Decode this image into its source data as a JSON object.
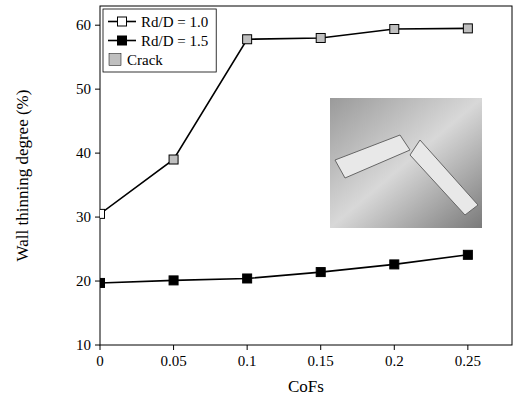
{
  "chart_data": {
    "type": "line",
    "x_label": "CoFs",
    "y_label": "Wall thinning degree (%)",
    "x": [
      0,
      0.05,
      0.1,
      0.15,
      0.2,
      0.25
    ],
    "series": [
      {
        "name": "Rd/D = 1.0",
        "color": "#000000",
        "marker": "square",
        "colors": [
          "#ffffff",
          "#bfbfbf",
          "#bfbfbf",
          "#bfbfbf",
          "#bfbfbf",
          "#bfbfbf"
        ],
        "values": [
          30.5,
          39,
          57.8,
          58,
          59.4,
          59.5
        ]
      },
      {
        "name": "Rd/D = 1.5",
        "color": "#000000",
        "marker": "square",
        "values": [
          19.7,
          20.1,
          20.4,
          21.4,
          22.6,
          24.1
        ]
      }
    ],
    "annotations": [
      {
        "text": "Crack",
        "color": "#bfbfbf",
        "marker": "square"
      }
    ],
    "xlim": [
      0,
      0.28
    ],
    "xticks": [
      0,
      0.05,
      0.1,
      0.15,
      0.2,
      0.25
    ],
    "ylim": [
      10,
      63
    ],
    "yticks": [
      10,
      20,
      30,
      40,
      50,
      60
    ],
    "legend": "upper left",
    "grid": false
  }
}
